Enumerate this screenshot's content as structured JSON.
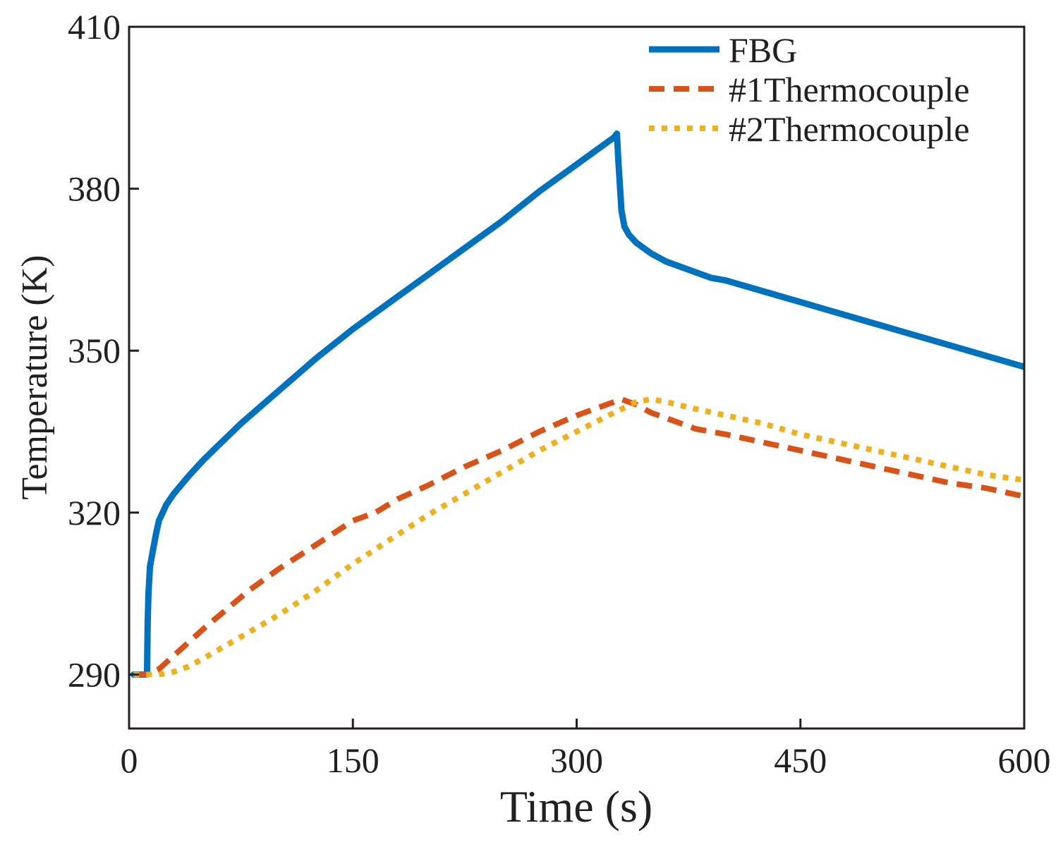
{
  "chart_data": {
    "type": "line",
    "title": "",
    "xlabel": "Time (s)",
    "ylabel": "Temperature (K)",
    "xlim": [
      0,
      600
    ],
    "ylim": [
      280,
      410
    ],
    "xticks": [
      0,
      150,
      300,
      450,
      600
    ],
    "yticks": [
      290,
      320,
      350,
      380,
      410
    ],
    "grid": false,
    "legend_position": "top-right",
    "series": [
      {
        "name": "FBG",
        "color": "#0072bd",
        "style": "solid",
        "x": [
          3,
          10,
          12,
          12.5,
          13,
          14,
          16,
          18,
          20,
          25,
          30,
          40,
          50,
          60,
          75,
          100,
          125,
          150,
          175,
          200,
          225,
          250,
          275,
          300,
          315,
          325,
          327,
          328,
          330,
          332,
          335,
          340,
          350,
          360,
          375,
          390,
          400,
          425,
          450,
          475,
          500,
          525,
          550,
          575,
          600
        ],
        "y": [
          290,
          290,
          290,
          300,
          305,
          310,
          313,
          316,
          318.5,
          321.5,
          323.5,
          326.8,
          329.8,
          332.5,
          336.5,
          342.5,
          348.5,
          354,
          359,
          364,
          369,
          374,
          379.5,
          384.5,
          387.5,
          389.5,
          390.2,
          385,
          376,
          373,
          371.5,
          370,
          368,
          366.5,
          365,
          363.5,
          363,
          361,
          359,
          357,
          355,
          353,
          351,
          349,
          347
        ]
      },
      {
        "name": "#1Thermocouple",
        "color": "#d95319",
        "style": "dashed",
        "x": [
          3,
          12,
          20,
          30,
          40,
          50,
          65,
          80,
          100,
          125,
          150,
          165,
          180,
          200,
          225,
          250,
          275,
          300,
          320,
          330,
          340,
          350,
          365,
          380,
          400,
          425,
          450,
          475,
          500,
          525,
          550,
          575,
          600
        ],
        "y": [
          290,
          290,
          291,
          293.5,
          296,
          298.5,
          302,
          305.5,
          309.5,
          314,
          318.5,
          320,
          322.5,
          325,
          328.5,
          331.5,
          335,
          338,
          340,
          341,
          340,
          338.5,
          337,
          335.5,
          334.5,
          333,
          331.5,
          330,
          328.5,
          327,
          325.5,
          324.5,
          323
        ]
      },
      {
        "name": "#2Thermocouple",
        "color": "#edb120",
        "style": "dotted",
        "x": [
          3,
          20,
          30,
          40,
          50,
          75,
          100,
          125,
          150,
          175,
          200,
          225,
          250,
          275,
          300,
          325,
          340,
          350,
          360,
          375,
          400,
          425,
          450,
          475,
          500,
          525,
          550,
          575,
          600
        ],
        "y": [
          290,
          290,
          290.5,
          291.5,
          293,
          297,
          301,
          305.5,
          310.5,
          315,
          319.5,
          323.5,
          327.5,
          331.5,
          335,
          338.5,
          340.5,
          341,
          340.5,
          339.5,
          338,
          336.5,
          334.5,
          333,
          331.5,
          330,
          328.5,
          327,
          326
        ]
      }
    ]
  }
}
